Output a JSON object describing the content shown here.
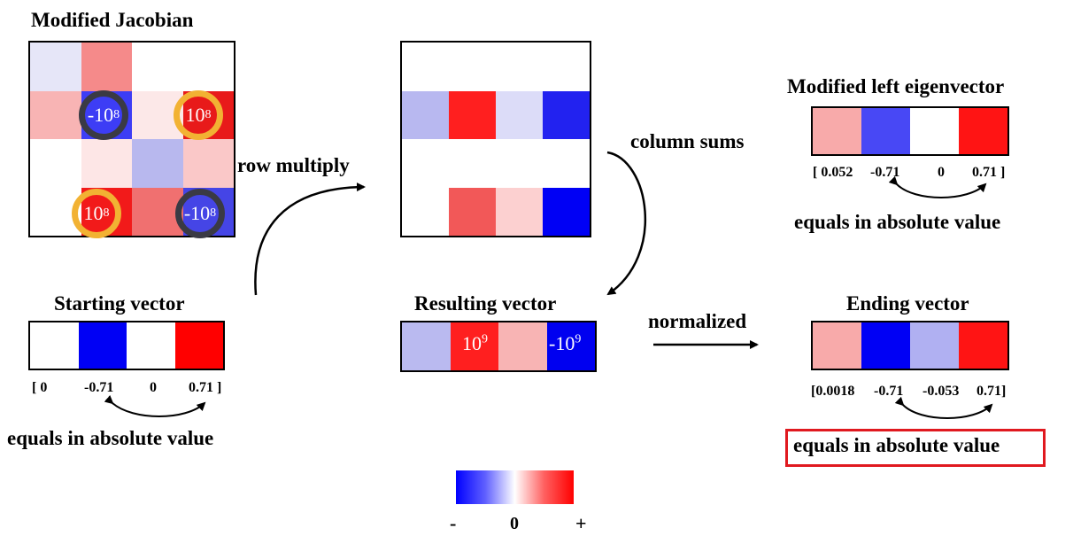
{
  "colors": {
    "strong_red": "#ff1f1f",
    "strong_blue": "#0000f5",
    "ring_dark": "#3a3a44",
    "ring_gold": "#f2b233",
    "highlight_box": "#e0191f"
  },
  "jacobian": {
    "title": "Modified Jacobian",
    "cells": [
      [
        "#e6e6f8",
        "#f58a8a",
        "#ffffff",
        "#ffffff"
      ],
      [
        "#f8b4b4",
        "#3d3df5",
        "#fce8e8",
        "#e81a1a"
      ],
      [
        "#ffffff",
        "#fde6e6",
        "#b8b8ee",
        "#fac8c8"
      ],
      [
        "#ffffff",
        "#f21a1a",
        "#f07070",
        "#4545e6"
      ]
    ],
    "ring_labels": {
      "r1c1": "-10",
      "r1c3": "10",
      "r3c1": "10",
      "r3c3": "-10",
      "exponent": "8"
    }
  },
  "row_multiply": {
    "label": "row multiply"
  },
  "product_matrix": {
    "cells": [
      [
        "#ffffff",
        "#ffffff",
        "#ffffff",
        "#ffffff"
      ],
      [
        "#b8b8f0",
        "#ff1f1f",
        "#dcdcf8",
        "#2222f0"
      ],
      [
        "#ffffff",
        "#ffffff",
        "#ffffff",
        "#ffffff"
      ],
      [
        "#ffffff",
        "#f25858",
        "#fcd0d0",
        "#0000f5"
      ]
    ]
  },
  "column_sums": {
    "label": "column sums"
  },
  "starting_vector": {
    "title": "Starting vector",
    "cells": [
      "#ffffff",
      "#0000f5",
      "#ffffff",
      "#ff0000"
    ],
    "values": [
      "[ 0",
      "-0.71",
      "0",
      "0.71 ]"
    ],
    "note": "equals in absolute value"
  },
  "resulting_vector": {
    "title": "Resulting vector",
    "cells": [
      "#babaf0",
      "#ff1f1f",
      "#f8b4b4",
      "#0000f0"
    ],
    "labels": {
      "c1": "10",
      "c3": "-10",
      "exponent": "9"
    }
  },
  "normalized": {
    "label": "normalized"
  },
  "left_eigenvector": {
    "title": "Modified left eigenvector",
    "cells": [
      "#f8aaaa",
      "#4848f5",
      "#ffffff",
      "#ff1414"
    ],
    "values": [
      "[ 0.052",
      "-0.71",
      "0",
      "0.71 ]"
    ],
    "note": "equals in absolute value"
  },
  "ending_vector": {
    "title": "Ending vector",
    "cells": [
      "#f8aaaa",
      "#0000f5",
      "#b0b0f2",
      "#ff1414"
    ],
    "values": [
      "[0.0018",
      "-0.71",
      "-0.053",
      "0.71]"
    ],
    "note": "equals in absolute value"
  },
  "colorbar": {
    "minus": "-",
    "zero": "0",
    "plus": "+"
  }
}
